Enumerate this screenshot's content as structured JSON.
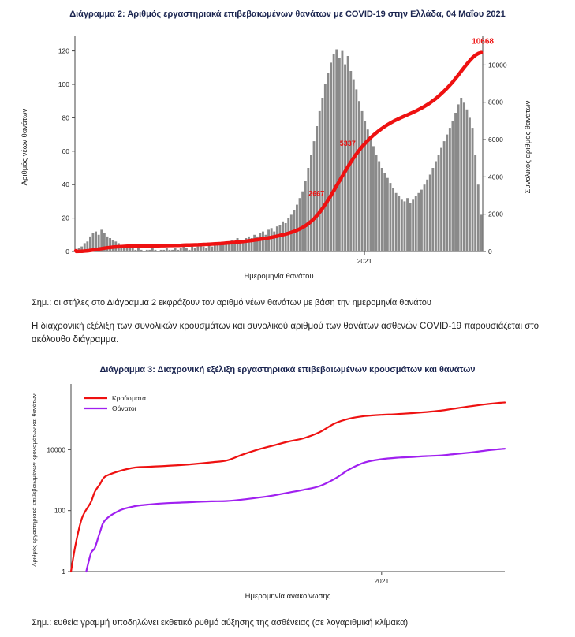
{
  "colors": {
    "red_line": "#ee1111",
    "purple_line": "#a020f0",
    "bar_gray": "#8a8a8a",
    "title_navy": "#1b2550",
    "axis": "#444444"
  },
  "notes": {
    "note_diagram2": "Σημ.: οι στήλες στο Διάγραμμα 2 εκφράζουν τον αριθμό νέων θανάτων με βάση την ημερομηνία θανάτου",
    "paragraph": "Η διαχρονική εξέλιξη των συνολικών κρουσμάτων και συνολικού αριθμού των θανάτων ασθενών COVID-19 παρουσιάζεται στο ακόλουθο διάγραμμα.",
    "note_diagram3": "Σημ.: ευθεία γραμμή υποδηλώνει εκθετικό ρυθμό αύξησης της ασθένειας (σε λογαριθμική κλίμακα)"
  },
  "chart_data": [
    {
      "type": "bar",
      "title": "Διάγραμμα 2: Αριθμός εργαστηριακά επιβεβαιωμένων θανάτων με COVID-19 στην Ελλάδα, 04 Μαΐου 2021",
      "xlabel": "Ημερομηνία θανάτου",
      "ylabel_left": "Αριθμός νέων θανάτων",
      "ylabel_right": "Συνολικός αριθμός θανάτων",
      "ylim_left": [
        0,
        125
      ],
      "yticks_left": [
        0,
        20,
        40,
        60,
        80,
        100,
        120
      ],
      "ylim_right": [
        0,
        11200
      ],
      "yticks_right": [
        0,
        2000,
        4000,
        6000,
        8000,
        10000
      ],
      "x_ticks": [
        {
          "pos": 0.71,
          "label": "2021"
        }
      ],
      "bar_color": "#8a8a8a",
      "line_color": "#ee1111",
      "bars": [
        1,
        2,
        3,
        5,
        6,
        9,
        11,
        12,
        10,
        13,
        11,
        9,
        8,
        7,
        6,
        5,
        4,
        3,
        3,
        2,
        2,
        1,
        2,
        1,
        0,
        1,
        1,
        2,
        1,
        0,
        1,
        1,
        2,
        1,
        1,
        2,
        1,
        2,
        3,
        2,
        1,
        3,
        2,
        3,
        4,
        3,
        2,
        4,
        3,
        5,
        4,
        4,
        5,
        6,
        5,
        7,
        6,
        8,
        7,
        6,
        8,
        9,
        8,
        10,
        9,
        11,
        12,
        10,
        13,
        14,
        12,
        15,
        16,
        18,
        17,
        20,
        22,
        25,
        28,
        32,
        36,
        42,
        50,
        58,
        66,
        75,
        84,
        92,
        100,
        107,
        113,
        118,
        121,
        116,
        120,
        112,
        117,
        108,
        103,
        97,
        90,
        84,
        78,
        73,
        68,
        63,
        58,
        54,
        50,
        47,
        44,
        41,
        38,
        35,
        33,
        31,
        30,
        32,
        29,
        31,
        33,
        35,
        37,
        40,
        43,
        46,
        50,
        54,
        58,
        62,
        66,
        70,
        74,
        78,
        83,
        88,
        92,
        89,
        85,
        80,
        74,
        58,
        40,
        22
      ],
      "cumulative_total": 10668,
      "milestones": [
        2667,
        5337
      ],
      "total_label": "10668"
    },
    {
      "type": "line",
      "title": "Διάγραμμα 3: Διαχρονική εξέλιξη εργαστηριακά επιβεβαιωμένων κρουσμάτων και θανάτων",
      "xlabel": "Ημερομηνία ανακοίνωσης",
      "ylabel": "Αριθμός εργαστηριακά επιβεβαιωμένων κρουσμάτων και θανάτων",
      "yscale": "log",
      "ylim": [
        1,
        1000000
      ],
      "yticks": [
        1,
        100,
        10000
      ],
      "x_ticks": [
        {
          "pos": 0.716,
          "label": "2021"
        }
      ],
      "legend_position": "top-left",
      "legend": [
        {
          "label": "Κρούσματα",
          "color": "#ee1111"
        },
        {
          "label": "Θάνατοι",
          "color": "#a020f0"
        }
      ],
      "series": [
        {
          "name": "Κρούσματα",
          "color": "#ee1111",
          "points": [
            [
              0.0,
              1
            ],
            [
              0.01,
              7
            ],
            [
              0.023,
              45
            ],
            [
              0.032,
              90
            ],
            [
              0.046,
              190
            ],
            [
              0.055,
              418
            ],
            [
              0.067,
              743
            ],
            [
              0.079,
              1314
            ],
            [
              0.113,
              2011
            ],
            [
              0.148,
              2591
            ],
            [
              0.183,
              2760
            ],
            [
              0.219,
              2917
            ],
            [
              0.254,
              3121
            ],
            [
              0.288,
              3409
            ],
            [
              0.323,
              3826
            ],
            [
              0.36,
              4447
            ],
            [
              0.395,
              6858
            ],
            [
              0.432,
              10134
            ],
            [
              0.467,
              13730
            ],
            [
              0.502,
              18475
            ],
            [
              0.536,
              23495
            ],
            [
              0.573,
              37196
            ],
            [
              0.608,
              72510
            ],
            [
              0.643,
              105271
            ],
            [
              0.678,
              126372
            ],
            [
              0.715,
              138850
            ],
            [
              0.75,
              146020
            ],
            [
              0.787,
              158006
            ],
            [
              0.82,
              171756
            ],
            [
              0.852,
              190235
            ],
            [
              0.886,
              224789
            ],
            [
              0.923,
              267356
            ],
            [
              0.956,
              307509
            ],
            [
              0.99,
              344917
            ],
            [
              1.0,
              351975
            ]
          ]
        },
        {
          "name": "Θάνατοι",
          "color": "#a020f0",
          "points": [
            [
              0.035,
              1
            ],
            [
              0.046,
              4
            ],
            [
              0.055,
              6
            ],
            [
              0.067,
              20
            ],
            [
              0.079,
              49
            ],
            [
              0.113,
              102
            ],
            [
              0.148,
              140
            ],
            [
              0.183,
              160
            ],
            [
              0.219,
              175
            ],
            [
              0.254,
              183
            ],
            [
              0.288,
              192
            ],
            [
              0.323,
              201
            ],
            [
              0.36,
              206
            ],
            [
              0.395,
              230
            ],
            [
              0.432,
              266
            ],
            [
              0.467,
              315
            ],
            [
              0.502,
              391
            ],
            [
              0.536,
              482
            ],
            [
              0.573,
              635
            ],
            [
              0.608,
              1106
            ],
            [
              0.643,
              2321
            ],
            [
              0.678,
              3840
            ],
            [
              0.715,
              4838
            ],
            [
              0.75,
              5421
            ],
            [
              0.787,
              5764
            ],
            [
              0.82,
              6152
            ],
            [
              0.852,
              6468
            ],
            [
              0.886,
              7196
            ],
            [
              0.923,
              8093
            ],
            [
              0.956,
              9330
            ],
            [
              0.99,
              10453
            ],
            [
              1.0,
              10668
            ]
          ]
        }
      ]
    }
  ]
}
